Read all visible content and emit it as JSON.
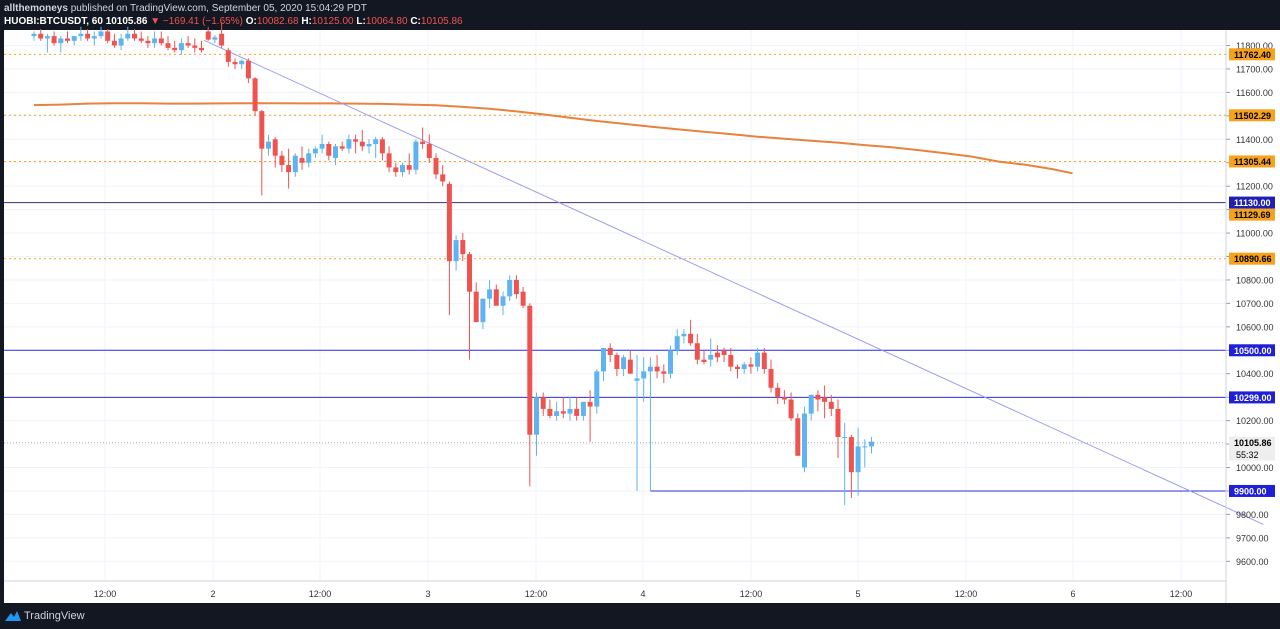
{
  "header": {
    "author": "allthemoneys",
    "published_text": "published on TradingView.com, September 05, 2020 15:04:29 PDT",
    "symbol": "HUOBI:BTCUSDT, 60",
    "last_price": "10105.86",
    "change": "▼ −169.41 (−1.65%)",
    "open_label": "O:",
    "open_value": "10082.68",
    "high_label": "H:",
    "high_value": "10125.00",
    "low_label": "L:",
    "low_value": "10064.80",
    "close_label": "C:",
    "close_value": "10105.86"
  },
  "footer": {
    "brand": "TradingView"
  },
  "countdown": "55:32",
  "colors": {
    "up": "#5eb3f0",
    "down": "#ef5350",
    "ma": "#e8823c",
    "level_orange": "#f7a21b",
    "level_blue": "#2a2ee6",
    "trend": "#9c9cf0"
  },
  "chart_data": {
    "type": "candlestick",
    "x_ticks": [
      "12:00",
      "2",
      "12:00",
      "3",
      "12:00",
      "4",
      "12:00",
      "5",
      "12:00",
      "6",
      "12:00"
    ],
    "y_ticks": [
      "11800.00",
      "11700.00",
      "11600.00",
      "11500.00",
      "11400.00",
      "11300.00",
      "11200.00",
      "11100.00",
      "11000.00",
      "10900.00",
      "10800.00",
      "10700.00",
      "10600.00",
      "10500.00",
      "10400.00",
      "10300.00",
      "10200.00",
      "10100.00",
      "10000.00",
      "9900.00",
      "9800.00",
      "9700.00",
      "9600.00"
    ],
    "ylim": [
      9530,
      11885
    ],
    "price_labels": [
      {
        "value": 11762.4,
        "text": "11762.40",
        "style": "orange"
      },
      {
        "value": 11502.29,
        "text": "11502.29",
        "style": "orange"
      },
      {
        "value": 11305.44,
        "text": "11305.44",
        "style": "orange"
      },
      {
        "value": 11130.0,
        "text": "11130.00",
        "style": "navy"
      },
      {
        "value": 11129.69,
        "text": "11129.69",
        "style": "orange"
      },
      {
        "value": 10890.66,
        "text": "10890.66",
        "style": "orange"
      },
      {
        "value": 10500.0,
        "text": "10500.00",
        "style": "blue"
      },
      {
        "value": 10299.0,
        "text": "10299.00",
        "style": "blue"
      },
      {
        "value": 10105.86,
        "text": "10105.86",
        "style": "grey"
      },
      {
        "value": 9900.0,
        "text": "9900.00",
        "style": "blue"
      }
    ],
    "ohlc": [
      [
        11840,
        11860,
        11820,
        11850
      ],
      [
        11850,
        11870,
        11820,
        11830
      ],
      [
        11830,
        11850,
        11770,
        11840
      ],
      [
        11840,
        11860,
        11800,
        11810
      ],
      [
        11810,
        11840,
        11770,
        11830
      ],
      [
        11830,
        11860,
        11810,
        11820
      ],
      [
        11820,
        11840,
        11800,
        11840
      ],
      [
        11840,
        11880,
        11820,
        11850
      ],
      [
        11850,
        11870,
        11820,
        11830
      ],
      [
        11830,
        11860,
        11800,
        11840
      ],
      [
        11840,
        11880,
        11830,
        11860
      ],
      [
        11860,
        11870,
        11810,
        11820
      ],
      [
        11820,
        11850,
        11790,
        11800
      ],
      [
        11800,
        11850,
        11780,
        11830
      ],
      [
        11830,
        11880,
        11820,
        11850
      ],
      [
        11850,
        11870,
        11820,
        11830
      ],
      [
        11830,
        11860,
        11810,
        11820
      ],
      [
        11820,
        11840,
        11790,
        11810
      ],
      [
        11810,
        11860,
        11790,
        11830
      ],
      [
        11830,
        11860,
        11800,
        11810
      ],
      [
        11810,
        11840,
        11780,
        11790
      ],
      [
        11790,
        11820,
        11770,
        11780
      ],
      [
        11780,
        11830,
        11760,
        11810
      ],
      [
        11810,
        11840,
        11790,
        11800
      ],
      [
        11800,
        11830,
        11770,
        11790
      ],
      [
        11790,
        11820,
        11770,
        11780
      ],
      [
        11860,
        11880,
        11820,
        11825
      ],
      [
        11825,
        11845,
        11810,
        11835
      ],
      [
        11850,
        11900,
        11790,
        11800
      ],
      [
        11780,
        11790,
        11710,
        11730
      ],
      [
        11730,
        11745,
        11700,
        11720
      ],
      [
        11720,
        11740,
        11700,
        11735
      ],
      [
        11735,
        11745,
        11640,
        11660
      ],
      [
        11660,
        11665,
        11500,
        11520
      ],
      [
        11520,
        11525,
        11160,
        11360
      ],
      [
        11360,
        11420,
        11330,
        11390
      ],
      [
        11400,
        11410,
        11280,
        11330
      ],
      [
        11330,
        11350,
        11260,
        11290
      ],
      [
        11290,
        11360,
        11190,
        11260
      ],
      [
        11260,
        11340,
        11240,
        11330
      ],
      [
        11320,
        11370,
        11270,
        11300
      ],
      [
        11300,
        11360,
        11280,
        11340
      ],
      [
        11340,
        11370,
        11320,
        11360
      ],
      [
        11360,
        11420,
        11340,
        11380
      ],
      [
        11380,
        11390,
        11310,
        11330
      ],
      [
        11320,
        11380,
        11290,
        11370
      ],
      [
        11370,
        11390,
        11350,
        11360
      ],
      [
        11360,
        11420,
        11340,
        11400
      ],
      [
        11400,
        11420,
        11340,
        11390
      ],
      [
        11390,
        11440,
        11350,
        11370
      ],
      [
        11370,
        11400,
        11340,
        11380
      ],
      [
        11380,
        11410,
        11320,
        11400
      ],
      [
        11400,
        11410,
        11310,
        11340
      ],
      [
        11340,
        11370,
        11260,
        11280
      ],
      [
        11280,
        11300,
        11240,
        11260
      ],
      [
        11260,
        11300,
        11240,
        11290
      ],
      [
        11290,
        11340,
        11250,
        11270
      ],
      [
        11270,
        11400,
        11250,
        11390
      ],
      [
        11390,
        11450,
        11360,
        11380
      ],
      [
        11380,
        11420,
        11300,
        11320
      ],
      [
        11320,
        11340,
        11230,
        11250
      ],
      [
        11250,
        11290,
        11200,
        11220
      ],
      [
        11210,
        11220,
        10650,
        10880
      ],
      [
        10880,
        10990,
        10840,
        10970
      ],
      [
        10970,
        11000,
        10880,
        10910
      ],
      [
        10910,
        10920,
        10460,
        10750
      ],
      [
        10750,
        10790,
        10620,
        10620
      ],
      [
        10620,
        10720,
        10590,
        10720
      ],
      [
        10720,
        10800,
        10680,
        10760
      ],
      [
        10760,
        10780,
        10710,
        10690
      ],
      [
        10690,
        10750,
        10650,
        10730
      ],
      [
        10730,
        10820,
        10710,
        10800
      ],
      [
        10800,
        10820,
        10720,
        10740
      ],
      [
        10750,
        10770,
        10680,
        10690
      ],
      [
        10690,
        10700,
        9920,
        10140
      ],
      [
        10140,
        10320,
        10050,
        10300
      ],
      [
        10300,
        10320,
        10220,
        10250
      ],
      [
        10250,
        10290,
        10210,
        10220
      ],
      [
        10220,
        10280,
        10200,
        10240
      ],
      [
        10240,
        10300,
        10210,
        10230
      ],
      [
        10230,
        10300,
        10200,
        10250
      ],
      [
        10250,
        10300,
        10200,
        10220
      ],
      [
        10220,
        10280,
        10200,
        10280
      ],
      [
        10280,
        10330,
        10110,
        10260
      ],
      [
        10260,
        10420,
        10230,
        10410
      ],
      [
        10410,
        10510,
        10370,
        10510
      ],
      [
        10510,
        10530,
        10450,
        10480
      ],
      [
        10480,
        10490,
        10390,
        10420
      ],
      [
        10420,
        10480,
        10390,
        10470
      ],
      [
        10460,
        10500,
        10400,
        10400
      ],
      [
        10370,
        10480,
        9900,
        10380
      ],
      [
        10380,
        10470,
        10280,
        10410
      ],
      [
        10410,
        10470,
        10370,
        10430
      ],
      [
        10430,
        10480,
        10380,
        10410
      ],
      [
        10410,
        10440,
        10360,
        10400
      ],
      [
        10400,
        10520,
        10380,
        10500
      ],
      [
        10500,
        10590,
        10480,
        10560
      ],
      [
        10560,
        10590,
        10530,
        10570
      ],
      [
        10570,
        10630,
        10520,
        10530
      ],
      [
        10530,
        10570,
        10440,
        10460
      ],
      [
        10460,
        10500,
        10440,
        10450
      ],
      [
        10460,
        10550,
        10430,
        10480
      ],
      [
        10490,
        10520,
        10450,
        10470
      ],
      [
        10500,
        10510,
        10450,
        10480
      ],
      [
        10480,
        10510,
        10410,
        10430
      ],
      [
        10430,
        10440,
        10380,
        10420
      ],
      [
        10420,
        10450,
        10400,
        10440
      ],
      [
        10440,
        10470,
        10400,
        10430
      ],
      [
        10430,
        10510,
        10410,
        10490
      ],
      [
        10490,
        10510,
        10400,
        10420
      ],
      [
        10420,
        10460,
        10320,
        10340
      ],
      [
        10340,
        10360,
        10270,
        10300
      ],
      [
        10300,
        10330,
        10270,
        10290
      ],
      [
        10290,
        10320,
        10200,
        10210
      ],
      [
        10210,
        10230,
        10050,
        10050
      ],
      [
        10000,
        10260,
        9980,
        10230
      ],
      [
        10230,
        10310,
        10200,
        10310
      ],
      [
        10310,
        10330,
        10240,
        10290
      ],
      [
        10300,
        10350,
        10210,
        10280
      ],
      [
        10280,
        10310,
        10220,
        10250
      ],
      [
        10250,
        10290,
        10040,
        10130
      ],
      [
        10130,
        10190,
        9840,
        10130
      ],
      [
        10130,
        10140,
        9870,
        9980
      ],
      [
        9980,
        10170,
        9880,
        10090
      ],
      [
        10090,
        10120,
        10000,
        10090
      ],
      [
        10090,
        10130,
        10060,
        10110
      ]
    ],
    "ma200": [
      [
        11546,
        0
      ],
      [
        11548,
        4
      ],
      [
        11552,
        8
      ],
      [
        11554,
        12
      ],
      [
        11554,
        16
      ],
      [
        11552,
        20
      ],
      [
        11552,
        24
      ],
      [
        11553,
        28
      ],
      [
        11554,
        32
      ],
      [
        11554,
        36
      ],
      [
        11553,
        40
      ],
      [
        11553,
        44
      ],
      [
        11552,
        48
      ],
      [
        11551,
        52
      ],
      [
        11548,
        56
      ],
      [
        11545,
        60
      ],
      [
        11538,
        64
      ],
      [
        11530,
        68
      ],
      [
        11519,
        72
      ],
      [
        11506,
        76
      ],
      [
        11492,
        80
      ],
      [
        11478,
        84
      ],
      [
        11466,
        88
      ],
      [
        11454,
        92
      ],
      [
        11443,
        96
      ],
      [
        11432,
        100
      ],
      [
        11422,
        104
      ],
      [
        11411,
        108
      ],
      [
        11402,
        112
      ],
      [
        11394,
        116
      ],
      [
        11386,
        120
      ],
      [
        11375,
        124
      ],
      [
        11366,
        128
      ],
      [
        11354,
        132
      ],
      [
        11340,
        136
      ],
      [
        11326,
        140
      ],
      [
        11305,
        144
      ],
      [
        11291,
        148
      ],
      [
        11273,
        152
      ],
      [
        11255,
        155
      ]
    ],
    "trendline": [
      [
        11822,
        25.4
      ],
      [
        9757,
        183.5
      ]
    ],
    "support_segment": {
      "value": 9900,
      "from_index": 92
    }
  }
}
